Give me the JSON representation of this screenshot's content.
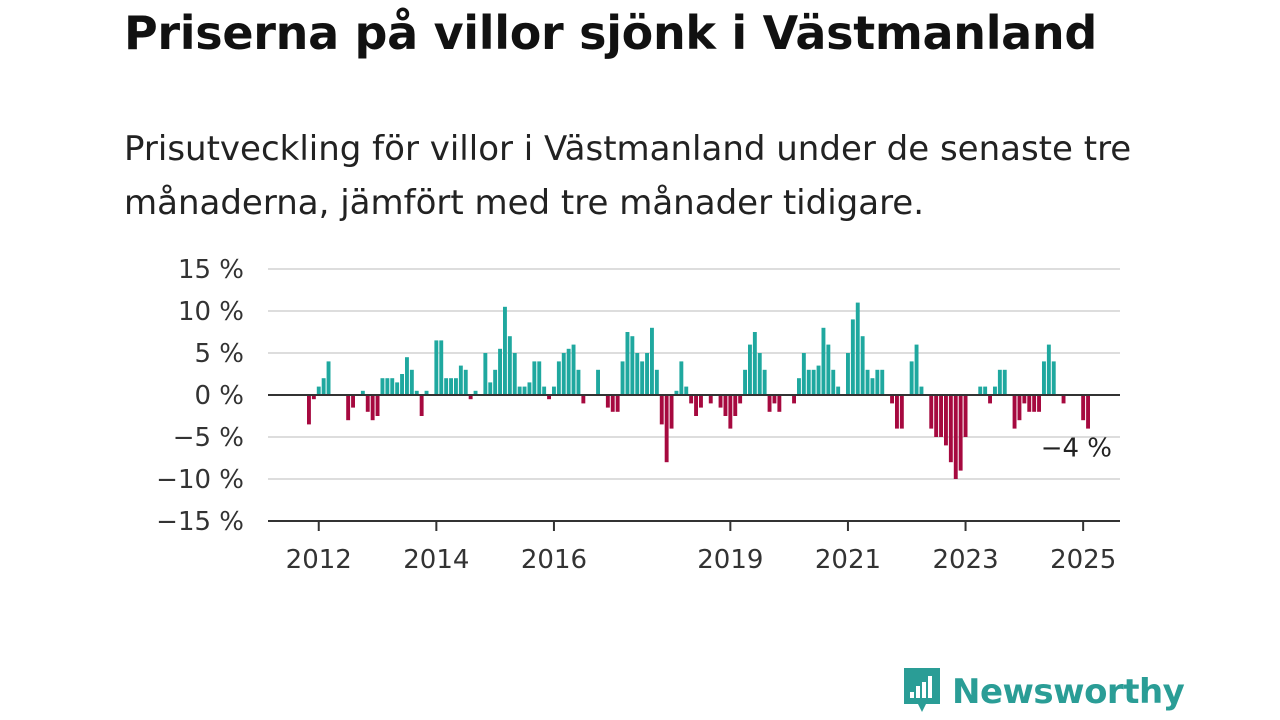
{
  "title": "Priserna på villor sjönk i Västmanland",
  "subtitle": "Prisutveckling för villor i Västmanland under de senaste tre månaderna, jämfört med tre månader tidigare.",
  "brand": {
    "name": "Newsworthy",
    "icon": "newsworthy-logo-icon",
    "color": "#2a9d96"
  },
  "chart_data": {
    "type": "bar",
    "x_start": "2011-11",
    "x_step": "month",
    "values": [
      -3.5,
      -0.5,
      1,
      2,
      4,
      0,
      0,
      0,
      -3,
      -1.5,
      0,
      0.5,
      -2,
      -3,
      -2.5,
      2,
      2,
      2,
      1.5,
      2.5,
      4.5,
      3,
      0.5,
      -2.5,
      0.5,
      0,
      6.5,
      6.5,
      2,
      2,
      2,
      3.5,
      3,
      -0.5,
      0.5,
      0,
      5,
      1.5,
      3,
      5.5,
      10.5,
      7,
      5,
      1,
      1,
      1.5,
      4,
      4,
      1,
      -0.5,
      1,
      4,
      5,
      5.5,
      6,
      3,
      -1,
      0,
      0,
      3,
      0,
      -1.5,
      -2,
      -2,
      4,
      7.5,
      7,
      5,
      4,
      5,
      8,
      3,
      -3.5,
      -8,
      -4,
      0.5,
      4,
      1,
      -1,
      -2.5,
      -1.5,
      0,
      -1,
      0,
      -1.5,
      -2.5,
      -4,
      -2.5,
      -1,
      3,
      6,
      7.5,
      5,
      3,
      -2,
      -1,
      -2,
      0,
      0,
      -1,
      2,
      5,
      3,
      3,
      3.5,
      8,
      6,
      3,
      1,
      0,
      5,
      9,
      11,
      7,
      3,
      2,
      3,
      3,
      0,
      -1,
      -4,
      -4,
      0,
      4,
      6,
      1,
      0,
      -4,
      -5,
      -5,
      -6,
      -8,
      -10,
      -9,
      -5,
      0,
      0,
      1,
      1,
      -1,
      1,
      3,
      3,
      0,
      -4,
      -3,
      -1,
      -2,
      -2,
      -2,
      4,
      6,
      4,
      0,
      -1,
      0,
      0,
      0,
      -3,
      -4
    ],
    "x_ticks": [
      {
        "label": "2012",
        "date": "2012-01"
      },
      {
        "label": "2014",
        "date": "2014-01"
      },
      {
        "label": "2016",
        "date": "2016-01"
      },
      {
        "label": "2019",
        "date": "2019-01"
      },
      {
        "label": "2021",
        "date": "2021-01"
      },
      {
        "label": "2023",
        "date": "2023-01"
      },
      {
        "label": "2025",
        "date": "2025-01"
      }
    ],
    "y_ticks": [
      {
        "value": 15,
        "label": "15 %"
      },
      {
        "value": 10,
        "label": "10 %"
      },
      {
        "value": 5,
        "label": "5 %"
      },
      {
        "value": 0,
        "label": "0 %"
      },
      {
        "value": -5,
        "label": "−5 %"
      },
      {
        "value": -10,
        "label": "−10 %"
      },
      {
        "value": -15,
        "label": "−15 %"
      }
    ],
    "ylim": [
      -15,
      15
    ],
    "grid": true,
    "colors": {
      "positive": "#1fa89f",
      "negative": "#a6093f",
      "grid": "#dddddd",
      "axis": "#333333"
    },
    "annotation": {
      "text": "−4 %",
      "value": -4
    }
  }
}
